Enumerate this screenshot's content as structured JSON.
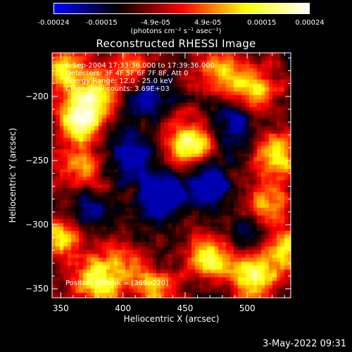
{
  "chart_data": {
    "type": "heatmap",
    "title": "Reconstructed RHESSI Image",
    "xlabel": "Heliocentric X (arcsec)",
    "ylabel": "Heliocentric Y (arcsec)",
    "xlim": [
      343,
      535
    ],
    "ylim": [
      -357,
      -166
    ],
    "x_ticks": [
      350,
      400,
      450,
      500
    ],
    "y_ticks": [
      -200,
      -250,
      -300,
      -350
    ],
    "colorbar": {
      "ticks": [
        "-0.00024",
        "-0.00015",
        "-4.9e-05",
        "4.9e-05",
        "0.00015",
        "0.00024"
      ],
      "tick_values": [
        -0.00024,
        -0.00015,
        -4.9e-05,
        4.9e-05,
        0.00015,
        0.00024
      ],
      "unit_label": "(photons cm⁻² s⁻¹ asec⁻²)",
      "colormap": [
        "#0000ff",
        "#000000",
        "#ff0000",
        "#ffff00",
        "#ffffff"
      ]
    },
    "annotations": [
      "6-Sep-2004 17:33:36.000 to 17:39:36.000",
      "Detectors: 3F 4F 5F 6F 7F 8F, Att 0",
      "Energy Range: 12.0 - 25.0 keV",
      "Clean      Total counts: 3.69E+03"
    ],
    "peak_label": "Position of Peak = [369,-220]",
    "peak_position": [
      369,
      -220
    ],
    "bright_regions": [
      {
        "x": 365,
        "y": -218,
        "level": 1.0
      },
      {
        "x": 352,
        "y": -180,
        "level": 0.75
      },
      {
        "x": 378,
        "y": -200,
        "level": 0.7
      },
      {
        "x": 405,
        "y": -180,
        "level": 0.55
      },
      {
        "x": 453,
        "y": -236,
        "level": 0.95
      },
      {
        "x": 478,
        "y": -180,
        "level": 0.6
      },
      {
        "x": 505,
        "y": -195,
        "level": 0.75
      },
      {
        "x": 525,
        "y": -245,
        "level": 0.8
      },
      {
        "x": 515,
        "y": -285,
        "level": 0.65
      },
      {
        "x": 365,
        "y": -255,
        "level": 0.55
      },
      {
        "x": 352,
        "y": -310,
        "level": 0.75
      },
      {
        "x": 380,
        "y": -345,
        "level": 0.85
      },
      {
        "x": 425,
        "y": -350,
        "level": 0.7
      },
      {
        "x": 470,
        "y": -325,
        "level": 0.8
      },
      {
        "x": 505,
        "y": -340,
        "level": 0.95
      },
      {
        "x": 532,
        "y": -320,
        "level": 0.7
      },
      {
        "x": 398,
        "y": -328,
        "level": 0.45
      }
    ],
    "dark_regions": [
      {
        "x": 430,
        "y": -280,
        "level": -0.8
      },
      {
        "x": 470,
        "y": -270,
        "level": -0.6
      },
      {
        "x": 405,
        "y": -245,
        "level": -0.55
      },
      {
        "x": 420,
        "y": -200,
        "level": -0.5
      },
      {
        "x": 490,
        "y": -220,
        "level": -0.5
      },
      {
        "x": 370,
        "y": -290,
        "level": -0.45
      },
      {
        "x": 500,
        "y": -305,
        "level": -0.4
      }
    ]
  },
  "footer": {
    "date": "3-May-2022 09:31"
  }
}
